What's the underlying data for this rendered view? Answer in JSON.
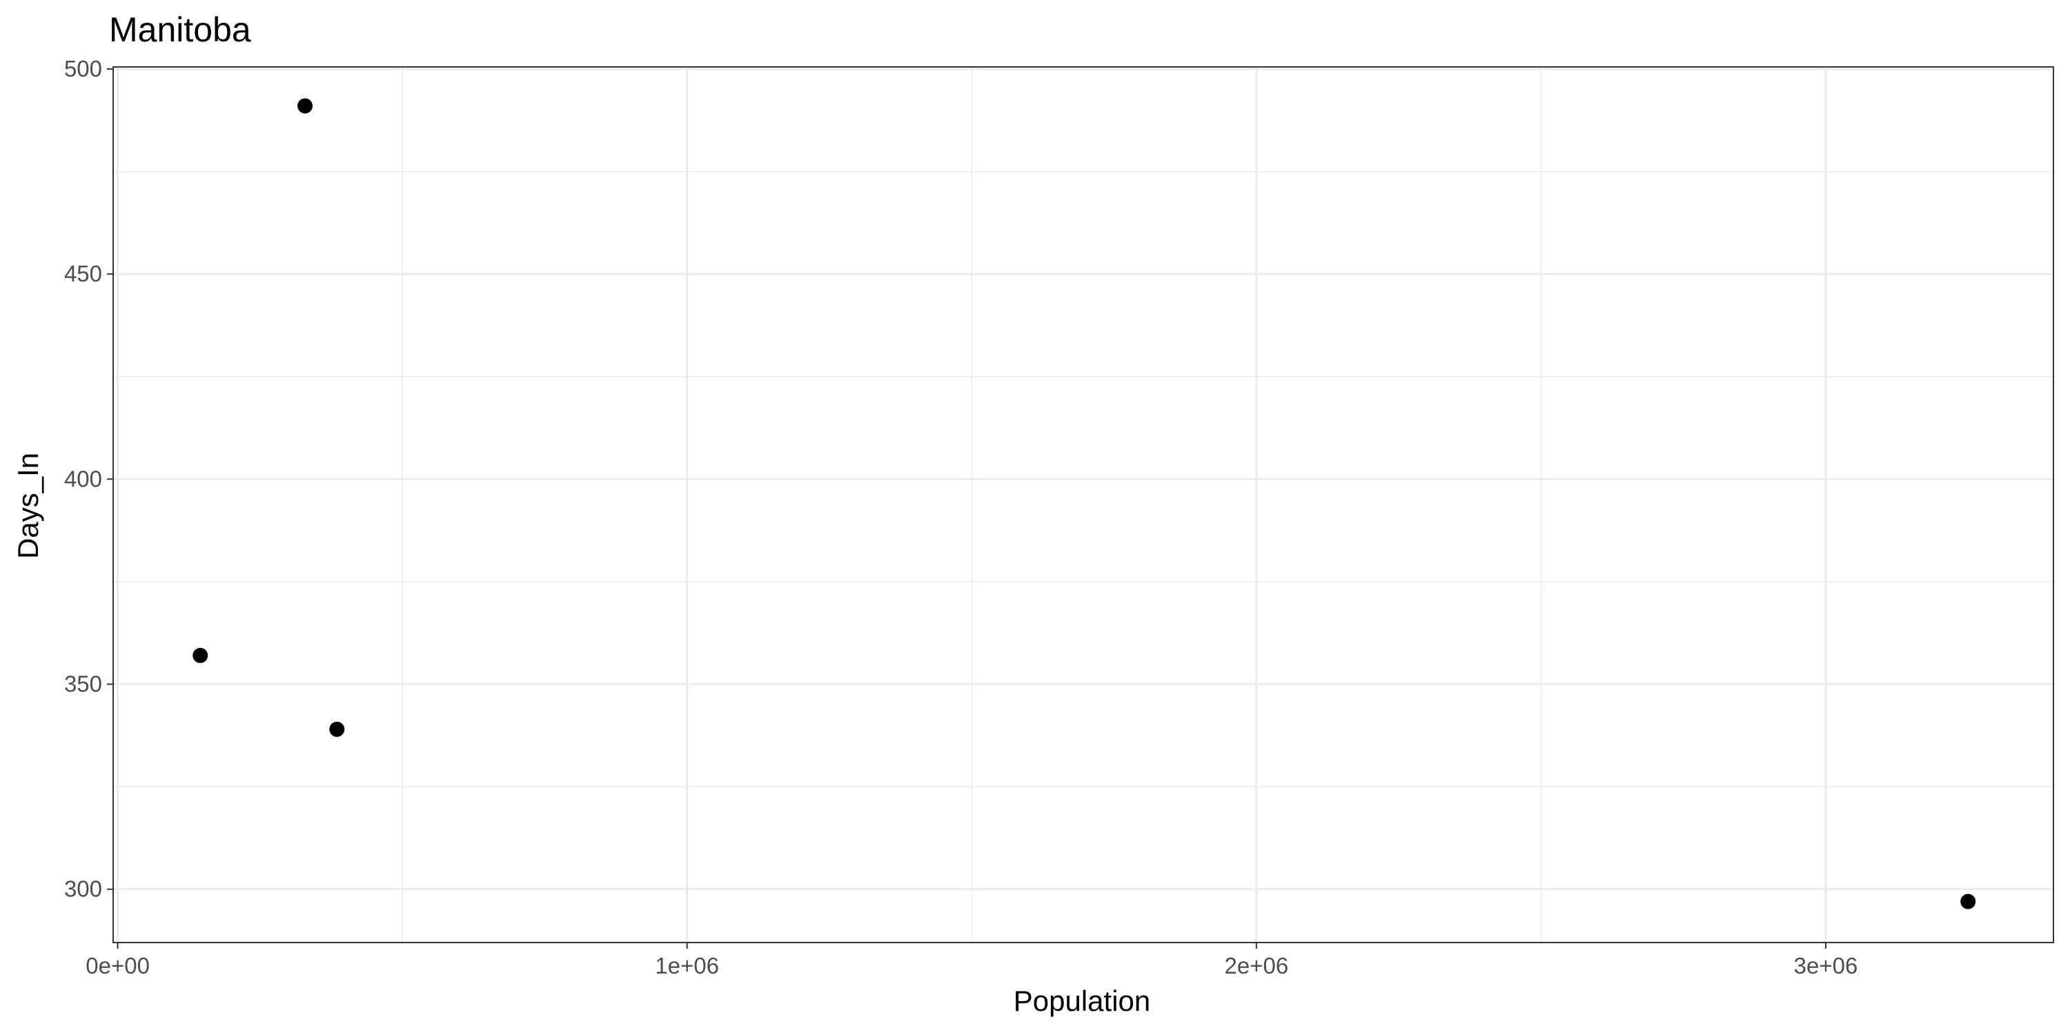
{
  "chart_data": {
    "type": "scatter",
    "title": "Manitoba",
    "xlabel": "Population",
    "ylabel": "Days_In",
    "x_ticks": [
      {
        "value": 0,
        "label": "0e+00"
      },
      {
        "value": 1000000,
        "label": "1e+06"
      },
      {
        "value": 2000000,
        "label": "2e+06"
      },
      {
        "value": 3000000,
        "label": "3e+06"
      }
    ],
    "y_ticks": [
      {
        "value": 300,
        "label": "300"
      },
      {
        "value": 350,
        "label": "350"
      },
      {
        "value": 400,
        "label": "400"
      },
      {
        "value": 450,
        "label": "450"
      },
      {
        "value": 500,
        "label": "500"
      }
    ],
    "xlim": [
      -8000,
      3400000
    ],
    "ylim": [
      287,
      500.5
    ],
    "grid": true,
    "points": [
      {
        "x": 145000,
        "y": 357
      },
      {
        "x": 329000,
        "y": 491
      },
      {
        "x": 385000,
        "y": 339
      },
      {
        "x": 3250000,
        "y": 297
      }
    ],
    "colors": {
      "point": "#000000",
      "grid": "#ebebeb",
      "panel_border": "#333333",
      "tick_label": "#4d4d4d",
      "background": "#ffffff"
    }
  }
}
